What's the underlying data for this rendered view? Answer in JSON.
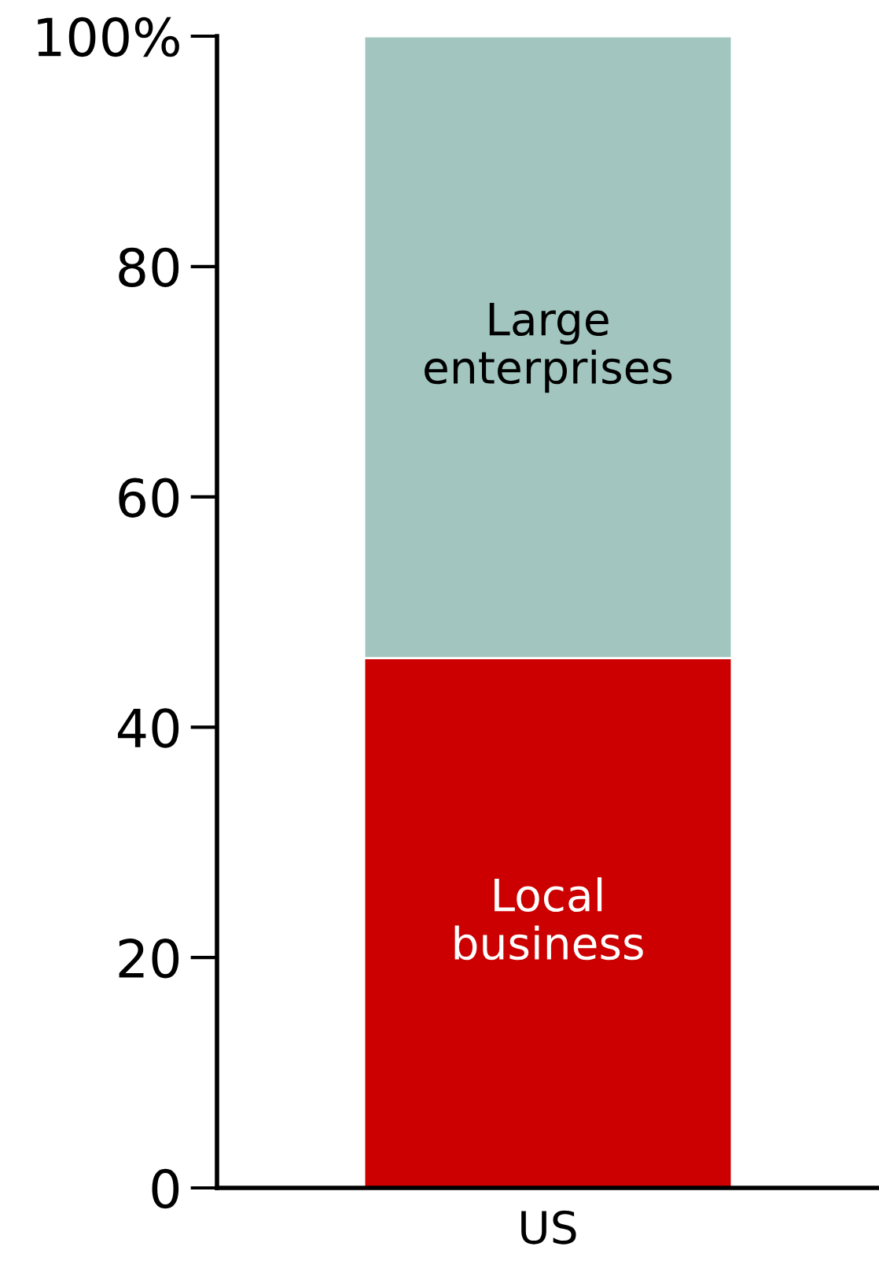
{
  "chart_data": {
    "type": "bar",
    "stacked": true,
    "categories": [
      "US"
    ],
    "series": [
      {
        "name": "Local business",
        "color": "#cc0000",
        "values": [
          46
        ]
      },
      {
        "name": "Large enterprises",
        "color": "#a2c6bf",
        "values": [
          54
        ]
      }
    ],
    "ylim": [
      0,
      100
    ],
    "yticks": [
      0,
      20,
      40,
      60,
      80,
      {
        "value": 100,
        "label": "100%"
      }
    ],
    "grid": false,
    "legend": false
  }
}
